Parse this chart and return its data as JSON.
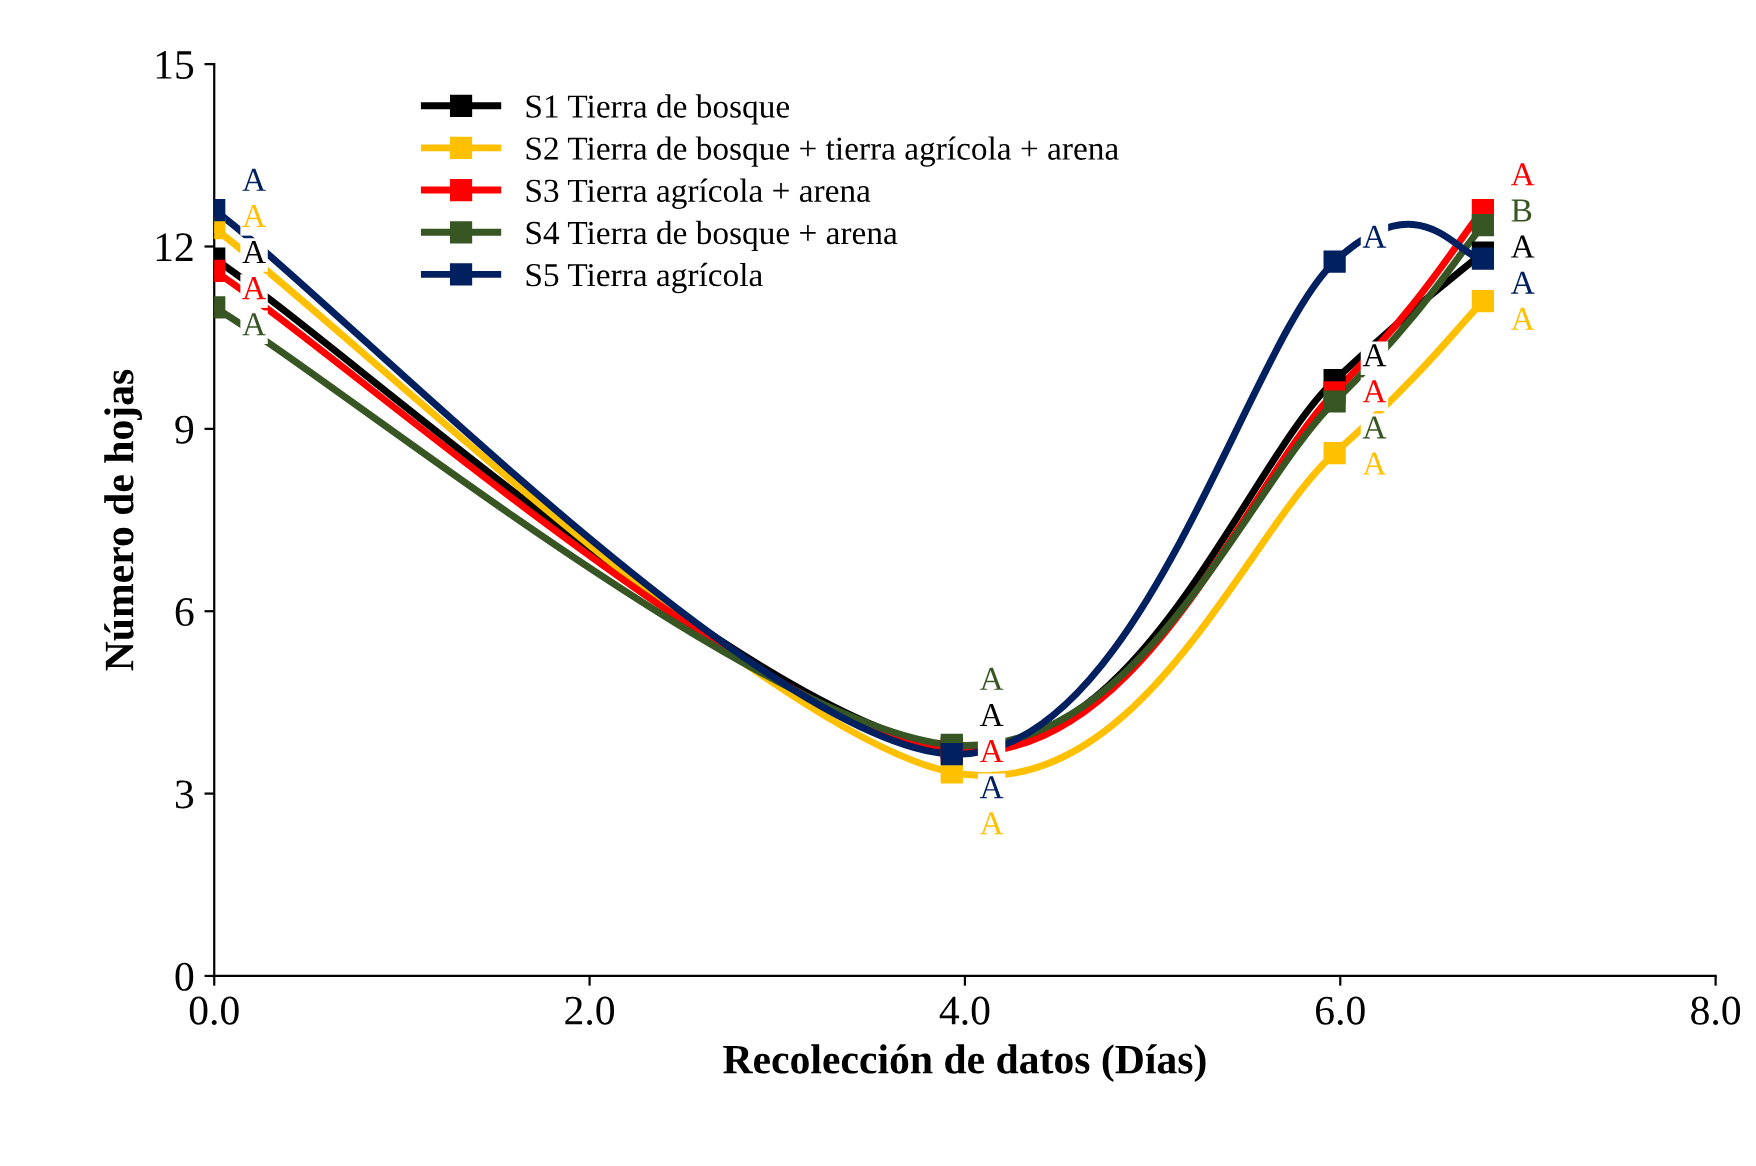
{
  "chart_data": {
    "type": "line",
    "xlabel": "Recolección de datos (Días)",
    "ylabel": "Número de hojas",
    "x": [
      0,
      3.93,
      5.97,
      6.76
    ],
    "xlim": [
      0,
      8
    ],
    "xticks": [
      {
        "value": 0,
        "label": "0.0"
      },
      {
        "value": 2,
        "label": "2.0"
      },
      {
        "value": 4,
        "label": "4.0"
      },
      {
        "value": 6,
        "label": "6.0"
      },
      {
        "value": 8,
        "label": "8.0"
      }
    ],
    "ylim": [
      0,
      15
    ],
    "yticks": [
      0,
      3,
      6,
      9,
      12,
      15
    ],
    "grid": false,
    "legend": "top left",
    "marker": "square",
    "line_style": "solid",
    "series": [
      {
        "name": "S1 Tierra de bosque",
        "color": "#000000",
        "values": [
          11.8,
          3.75,
          9.8,
          11.9
        ],
        "value_labels": [
          "A",
          "A",
          "A",
          "A"
        ]
      },
      {
        "name": "S2 Tierra de bosque + tierra agrícola + arena",
        "color": "#ffc000",
        "values": [
          12.3,
          3.35,
          8.6,
          11.1
        ],
        "value_labels": [
          "A",
          "A",
          "A",
          "A"
        ]
      },
      {
        "name": "S3 Tierra agrícola + arena",
        "color": "#ff0000",
        "values": [
          11.6,
          3.7,
          9.6,
          12.6
        ],
        "value_labels": [
          "A",
          "A",
          "A",
          "A"
        ]
      },
      {
        "name": "S4 Tierra de bosque + arena",
        "color": "#375623",
        "values": [
          11.0,
          3.8,
          9.45,
          12.35
        ],
        "value_labels": [
          "A",
          "A",
          "A",
          "B"
        ]
      },
      {
        "name": "S5 Tierra agrícola",
        "color": "#002060",
        "values": [
          12.6,
          3.65,
          11.75,
          11.8
        ],
        "value_labels": [
          "A",
          "A",
          "A",
          "A"
        ]
      }
    ]
  }
}
